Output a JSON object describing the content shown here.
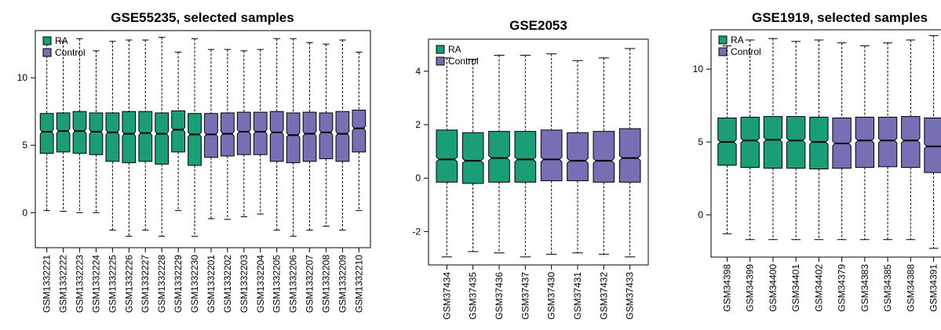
{
  "colors": {
    "ra": "#1b9e77",
    "control": "#7570b3"
  },
  "chart_data": [
    {
      "type": "box",
      "title": "GSE55235, selected samples",
      "xlabel": "",
      "ylabel": "",
      "ylim": [
        -2.6,
        13.5
      ],
      "yticks": [
        0,
        5,
        10
      ],
      "legend": {
        "position": "top-left",
        "entries": [
          "RA",
          "Control"
        ]
      },
      "groups": {
        "RA": [
          0,
          1,
          2,
          3,
          4,
          5,
          6,
          7,
          8,
          9
        ],
        "Control": [
          10,
          11,
          12,
          13,
          14,
          15,
          16,
          17,
          18,
          19
        ]
      },
      "samples": [
        {
          "name": "GSM1332221",
          "group": "RA",
          "min": 0.15,
          "q1": 4.4,
          "median": 6.0,
          "q3": 7.35,
          "max": 12.5
        },
        {
          "name": "GSM1332222",
          "group": "RA",
          "min": 0.1,
          "q1": 4.5,
          "median": 6.05,
          "q3": 7.4,
          "max": 12.7
        },
        {
          "name": "GSM1332223",
          "group": "RA",
          "min": 0.0,
          "q1": 4.4,
          "median": 6.05,
          "q3": 7.5,
          "max": 12.9
        },
        {
          "name": "GSM1332224",
          "group": "RA",
          "min": 0.0,
          "q1": 4.3,
          "median": 6.0,
          "q3": 7.4,
          "max": 12.0
        },
        {
          "name": "GSM1332225",
          "group": "RA",
          "min": -1.3,
          "q1": 3.8,
          "median": 5.95,
          "q3": 7.4,
          "max": 12.7
        },
        {
          "name": "GSM1332226",
          "group": "RA",
          "min": -1.75,
          "q1": 3.7,
          "median": 5.85,
          "q3": 7.5,
          "max": 12.8
        },
        {
          "name": "GSM1332227",
          "group": "RA",
          "min": -1.3,
          "q1": 3.8,
          "median": 5.9,
          "q3": 7.5,
          "max": 12.8
        },
        {
          "name": "GSM1332228",
          "group": "RA",
          "min": -1.75,
          "q1": 3.6,
          "median": 5.85,
          "q3": 7.4,
          "max": 13.0
        },
        {
          "name": "GSM1332229",
          "group": "RA",
          "min": 0.15,
          "q1": 4.5,
          "median": 6.15,
          "q3": 7.55,
          "max": 11.9
        },
        {
          "name": "GSM1332230",
          "group": "RA",
          "min": -1.75,
          "q1": 3.5,
          "median": 5.8,
          "q3": 7.35,
          "max": 12.9
        },
        {
          "name": "GSM1332201",
          "group": "Control",
          "min": -0.45,
          "q1": 4.1,
          "median": 5.8,
          "q3": 7.35,
          "max": 12.1
        },
        {
          "name": "GSM1332202",
          "group": "Control",
          "min": -0.5,
          "q1": 4.2,
          "median": 5.85,
          "q3": 7.4,
          "max": 12.1
        },
        {
          "name": "GSM1332203",
          "group": "Control",
          "min": -0.3,
          "q1": 4.3,
          "median": 6.0,
          "q3": 7.45,
          "max": 12.0
        },
        {
          "name": "GSM1332204",
          "group": "Control",
          "min": -0.1,
          "q1": 4.3,
          "median": 6.0,
          "q3": 7.45,
          "max": 12.1
        },
        {
          "name": "GSM1332205",
          "group": "Control",
          "min": -1.3,
          "q1": 3.8,
          "median": 5.95,
          "q3": 7.5,
          "max": 12.9
        },
        {
          "name": "GSM1332206",
          "group": "Control",
          "min": -1.75,
          "q1": 3.7,
          "median": 5.75,
          "q3": 7.4,
          "max": 12.9
        },
        {
          "name": "GSM1332207",
          "group": "Control",
          "min": -1.3,
          "q1": 3.8,
          "median": 5.85,
          "q3": 7.45,
          "max": 12.6
        },
        {
          "name": "GSM1332208",
          "group": "Control",
          "min": -1.0,
          "q1": 4.0,
          "median": 5.95,
          "q3": 7.4,
          "max": 12.5
        },
        {
          "name": "GSM1332209",
          "group": "Control",
          "min": -1.3,
          "q1": 3.8,
          "median": 5.85,
          "q3": 7.5,
          "max": 12.8
        },
        {
          "name": "GSM1332210",
          "group": "Control",
          "min": 0.15,
          "q1": 4.5,
          "median": 6.25,
          "q3": 7.6,
          "max": 11.9
        }
      ]
    },
    {
      "type": "box",
      "title": "GSE2053",
      "xlabel": "",
      "ylabel": "",
      "ylim": [
        -3.25,
        5.2
      ],
      "yticks": [
        -2,
        0,
        2,
        4
      ],
      "legend": {
        "position": "top-left",
        "entries": [
          "RA",
          "Control"
        ]
      },
      "groups": {
        "RA": [
          0,
          1,
          2,
          3
        ],
        "Control": [
          4,
          5,
          6,
          7
        ]
      },
      "samples": [
        {
          "name": "GSM37434",
          "group": "RA",
          "min": -2.95,
          "q1": -0.15,
          "median": 0.7,
          "q3": 1.8,
          "max": 4.5
        },
        {
          "name": "GSM37435",
          "group": "RA",
          "min": -2.75,
          "q1": -0.2,
          "median": 0.65,
          "q3": 1.7,
          "max": 4.45
        },
        {
          "name": "GSM37436",
          "group": "RA",
          "min": -2.8,
          "q1": -0.15,
          "median": 0.75,
          "q3": 1.75,
          "max": 4.6
        },
        {
          "name": "GSM37437",
          "group": "RA",
          "min": -2.95,
          "q1": -0.15,
          "median": 0.7,
          "q3": 1.75,
          "max": 4.6
        },
        {
          "name": "GSM37430",
          "group": "Control",
          "min": -2.85,
          "q1": -0.1,
          "median": 0.7,
          "q3": 1.8,
          "max": 4.65
        },
        {
          "name": "GSM37431",
          "group": "Control",
          "min": -2.8,
          "q1": -0.1,
          "median": 0.65,
          "q3": 1.7,
          "max": 4.4
        },
        {
          "name": "GSM37432",
          "group": "Control",
          "min": -2.85,
          "q1": -0.15,
          "median": 0.65,
          "q3": 1.75,
          "max": 4.5
        },
        {
          "name": "GSM37433",
          "group": "Control",
          "min": -2.95,
          "q1": -0.15,
          "median": 0.75,
          "q3": 1.85,
          "max": 4.85
        }
      ]
    },
    {
      "type": "box",
      "title": "GSE1919, selected samples",
      "xlabel": "",
      "ylabel": "",
      "ylim": [
        -2.9,
        12.7
      ],
      "yticks": [
        0,
        5,
        10
      ],
      "legend": {
        "position": "top-left",
        "entries": [
          "RA",
          "Control"
        ]
      },
      "groups": {
        "RA": [
          0,
          1,
          2,
          3,
          4
        ],
        "Control": [
          5,
          6,
          7,
          8,
          9
        ]
      },
      "samples": [
        {
          "name": "GSM34398",
          "group": "RA",
          "min": -1.3,
          "q1": 3.4,
          "median": 5.0,
          "q3": 6.65,
          "max": 11.6
        },
        {
          "name": "GSM34399",
          "group": "RA",
          "min": -1.7,
          "q1": 3.25,
          "median": 5.1,
          "q3": 6.7,
          "max": 12.0
        },
        {
          "name": "GSM34400",
          "group": "RA",
          "min": -1.7,
          "q1": 3.2,
          "median": 5.15,
          "q3": 6.75,
          "max": 12.1
        },
        {
          "name": "GSM34401",
          "group": "RA",
          "min": -1.7,
          "q1": 3.2,
          "median": 5.1,
          "q3": 6.75,
          "max": 11.9
        },
        {
          "name": "GSM34402",
          "group": "RA",
          "min": -1.7,
          "q1": 3.15,
          "median": 5.0,
          "q3": 6.7,
          "max": 12.0
        },
        {
          "name": "GSM34379",
          "group": "Control",
          "min": -1.7,
          "q1": 3.2,
          "median": 4.9,
          "q3": 6.65,
          "max": 11.8
        },
        {
          "name": "GSM34383",
          "group": "Control",
          "min": -1.7,
          "q1": 3.25,
          "median": 5.1,
          "q3": 6.7,
          "max": 11.6
        },
        {
          "name": "GSM34385",
          "group": "Control",
          "min": -1.7,
          "q1": 3.3,
          "median": 5.1,
          "q3": 6.7,
          "max": 11.8
        },
        {
          "name": "GSM34388",
          "group": "Control",
          "min": -1.7,
          "q1": 3.25,
          "median": 5.1,
          "q3": 6.75,
          "max": 12.0
        },
        {
          "name": "GSM34391",
          "group": "Control",
          "min": -2.3,
          "q1": 2.9,
          "median": 4.7,
          "q3": 6.65,
          "max": 12.3
        }
      ]
    }
  ]
}
